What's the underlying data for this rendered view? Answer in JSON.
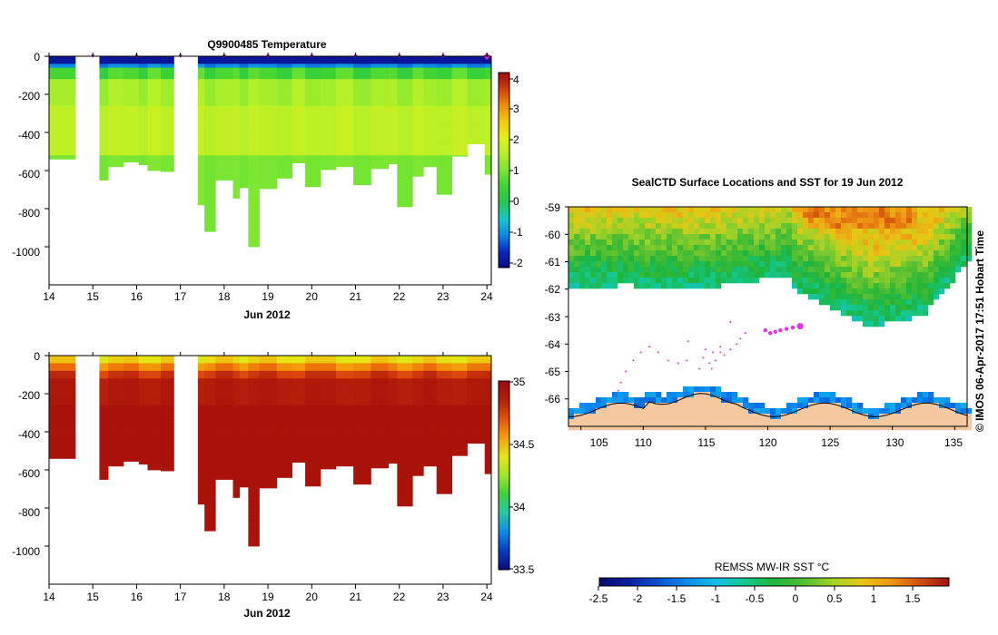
{
  "colors": {
    "temp_scale": [
      "#0a0a7a",
      "#0a28c8",
      "#0a8ce6",
      "#14c8c8",
      "#23c850",
      "#3cd232",
      "#78e632",
      "#b4f028",
      "#e6f014",
      "#f5c80a",
      "#f08c0a",
      "#d23c0a",
      "#a00a0a"
    ],
    "sal_scale": [
      "#0a0a7a",
      "#0a3cc8",
      "#0a8ce6",
      "#28c8a0",
      "#3cd23c",
      "#a0e628",
      "#e6e614",
      "#f5a00a",
      "#e6500a",
      "#b41e0a",
      "#a00a0a"
    ],
    "sst_scale": [
      "#0a0a6e",
      "#0a1ea0",
      "#0a50d2",
      "#0a8cf0",
      "#14bee6",
      "#14c88c",
      "#1eb43c",
      "#50be32",
      "#a0d228",
      "#e6c814",
      "#f09614",
      "#d2500a",
      "#a01414"
    ],
    "land": "#f5c8a0",
    "track": "#e632e6",
    "marker": "#cc33cc"
  },
  "chart_data": [
    {
      "type": "heatmap",
      "title": "Q9900485  Temperature",
      "variable": "temperature",
      "xlabel": "Jun 2012",
      "ylabel": "",
      "xlim": [
        14,
        24.1
      ],
      "ylim": [
        -1200,
        0
      ],
      "x_ticks": [
        "14",
        "15",
        "16",
        "17",
        "18",
        "19",
        "20",
        "21",
        "22",
        "23",
        "24"
      ],
      "y_ticks": [
        "0",
        "-200",
        "-400",
        "-600",
        "-800",
        "-1000"
      ],
      "colorbar": {
        "min": -2.1,
        "max": 4.2,
        "ticks": [
          "4",
          "3",
          "2",
          "1",
          "0",
          "-1",
          "-2"
        ]
      },
      "profile_marker_days": [
        15.0,
        16.0,
        17.0,
        18.0,
        19.0,
        20.0,
        21.0,
        22.0,
        23.0,
        24.0
      ],
      "profiles": [
        {
          "day": 14.0,
          "max_depth": 540
        },
        {
          "day": 14.6,
          "max_depth": 0
        },
        {
          "day": 15.15,
          "max_depth": 650
        },
        {
          "day": 15.35,
          "max_depth": 580
        },
        {
          "day": 15.7,
          "max_depth": 555
        },
        {
          "day": 16.05,
          "max_depth": 570
        },
        {
          "day": 16.25,
          "max_depth": 600
        },
        {
          "day": 16.55,
          "max_depth": 605
        },
        {
          "day": 16.85,
          "max_depth": 0
        },
        {
          "day": 17.4,
          "max_depth": 780
        },
        {
          "day": 17.55,
          "max_depth": 920
        },
        {
          "day": 17.8,
          "max_depth": 650
        },
        {
          "day": 18.2,
          "max_depth": 745
        },
        {
          "day": 18.35,
          "max_depth": 690
        },
        {
          "day": 18.55,
          "max_depth": 1000
        },
        {
          "day": 18.8,
          "max_depth": 695
        },
        {
          "day": 19.2,
          "max_depth": 640
        },
        {
          "day": 19.55,
          "max_depth": 560
        },
        {
          "day": 19.85,
          "max_depth": 685
        },
        {
          "day": 20.2,
          "max_depth": 595
        },
        {
          "day": 20.55,
          "max_depth": 580
        },
        {
          "day": 20.95,
          "max_depth": 675
        },
        {
          "day": 21.35,
          "max_depth": 590
        },
        {
          "day": 21.75,
          "max_depth": 565
        },
        {
          "day": 21.95,
          "max_depth": 790
        },
        {
          "day": 22.3,
          "max_depth": 630
        },
        {
          "day": 22.55,
          "max_depth": 580
        },
        {
          "day": 22.85,
          "max_depth": 725
        },
        {
          "day": 23.2,
          "max_depth": 525
        },
        {
          "day": 23.55,
          "max_depth": 460
        },
        {
          "day": 23.95,
          "max_depth": 620
        }
      ]
    },
    {
      "type": "heatmap",
      "title": "",
      "variable": "salinity",
      "xlabel": "Jun 2012",
      "ylabel": "",
      "xlim": [
        14,
        24.1
      ],
      "ylim": [
        -1200,
        0
      ],
      "x_ticks": [
        "14",
        "15",
        "16",
        "17",
        "18",
        "19",
        "20",
        "21",
        "22",
        "23",
        "24"
      ],
      "y_ticks": [
        "0",
        "-200",
        "-400",
        "-600",
        "-800",
        "-1000"
      ],
      "colorbar": {
        "min": 33.5,
        "max": 35.0,
        "ticks": [
          "35",
          "34.5",
          "34",
          "33.5"
        ]
      }
    },
    {
      "type": "heatmap",
      "title": "SealCTD Surface Locations and SST for 19 Jun 2012",
      "xlabel": "",
      "ylabel": "",
      "xlim": [
        104,
        136
      ],
      "ylim": [
        -67,
        -59
      ],
      "x_ticks": [
        "105",
        "110",
        "115",
        "120",
        "125",
        "130",
        "135"
      ],
      "y_ticks": [
        "-59",
        "-60",
        "-61",
        "-62",
        "-63",
        "-64",
        "-65",
        "-66"
      ],
      "track_points": [
        [
          117.5,
          -64.0
        ],
        [
          117.8,
          -63.8
        ],
        [
          118.2,
          -63.6
        ],
        [
          117.0,
          -64.2
        ],
        [
          116.5,
          -64.4
        ],
        [
          116.2,
          -64.3
        ],
        [
          115.8,
          -64.6
        ],
        [
          115.3,
          -64.7
        ],
        [
          114.8,
          -64.5
        ],
        [
          114.5,
          -64.9
        ],
        [
          115.5,
          -64.9
        ],
        [
          113.5,
          -64.6
        ],
        [
          112.8,
          -64.7
        ],
        [
          112.0,
          -64.6
        ],
        [
          111.2,
          -64.3
        ],
        [
          110.5,
          -64.1
        ],
        [
          109.8,
          -64.3
        ],
        [
          109.2,
          -64.6
        ],
        [
          108.6,
          -65.0
        ],
        [
          108.2,
          -65.4
        ],
        [
          108.0,
          -65.7
        ],
        [
          107.9,
          -66.0
        ],
        [
          116.2,
          -64.1
        ],
        [
          115.6,
          -64.3
        ],
        [
          113.6,
          -63.9
        ],
        [
          117.0,
          -63.2
        ],
        [
          115.0,
          -64.2
        ]
      ],
      "recent_points": [
        [
          119.8,
          -63.5
        ],
        [
          120.2,
          -63.6
        ],
        [
          120.6,
          -63.55
        ],
        [
          121.0,
          -63.5
        ],
        [
          121.5,
          -63.45
        ],
        [
          122.0,
          -63.4
        ]
      ],
      "latest_point": [
        122.6,
        -63.35
      ],
      "colorbar": {
        "label": "REMSS MW-IR SST °C",
        "min": -2.6,
        "max": 2.0,
        "ticks": [
          "-2.5",
          "-2",
          "-1.5",
          "-1",
          "-0.5",
          "0",
          "0.5",
          "1",
          "1.5"
        ]
      }
    }
  ],
  "credit": "© IMOS 06-Apr-2017 17:51 Hobart Time"
}
